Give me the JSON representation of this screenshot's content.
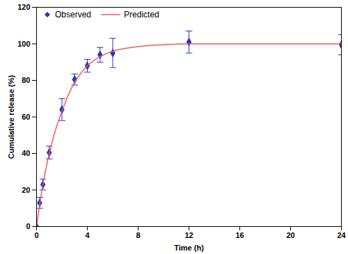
{
  "chart_data": {
    "type": "scatter",
    "xlabel": "Time (h)",
    "ylabel": "Cumulative release (%)",
    "xlim": [
      0,
      24
    ],
    "xticks": [
      0,
      4,
      8,
      12,
      16,
      20,
      24
    ],
    "ylim": [
      0,
      120
    ],
    "yticks": [
      0,
      20,
      40,
      60,
      80,
      100,
      120
    ],
    "grid": false,
    "legend": "top-left",
    "series": [
      {
        "name": "Observed",
        "type": "scatter",
        "marker": "diamond",
        "color": "#2436b8",
        "x": [
          0,
          0.25,
          0.5,
          1,
          2,
          3,
          4,
          5,
          6,
          12,
          24
        ],
        "values": [
          0,
          13,
          23,
          40.5,
          64,
          80.5,
          88,
          94,
          95,
          101,
          99.5
        ],
        "errors": [
          0,
          3,
          3,
          3.5,
          6,
          3,
          3.5,
          4,
          8,
          6,
          5.5
        ]
      },
      {
        "name": "Predicted",
        "type": "line",
        "line_style": "solid",
        "color": "#f05a5a",
        "x": [
          0,
          0.25,
          0.5,
          1,
          1.5,
          2,
          2.5,
          3,
          3.5,
          4,
          5,
          6,
          7,
          8,
          10,
          12,
          16,
          20,
          24
        ],
        "values": [
          0,
          12,
          23,
          40,
          53,
          63,
          72,
          79,
          84,
          88,
          93,
          96,
          97.5,
          98.5,
          99.5,
          100,
          100,
          100,
          100
        ]
      }
    ]
  }
}
